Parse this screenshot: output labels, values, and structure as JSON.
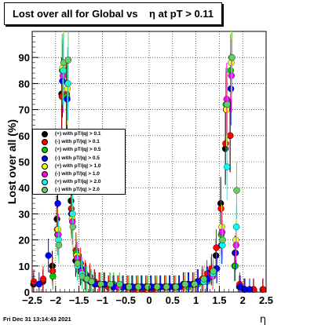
{
  "title": "Lost over all for Global vs    η at pT > 0.11",
  "footer": "Fri Dec 31 13:14:43 2021",
  "chart_data": {
    "type": "scatter",
    "title": "Lost over all for Global vs    η at pT > 0.11",
    "xlabel": "η",
    "ylabel": "Lost over all (%)",
    "xlim": [
      -2.5,
      2.5
    ],
    "ylim": [
      0,
      100
    ],
    "x_ticks": [
      "−2.5",
      "−2",
      "−1.5",
      "−1",
      "−0.5",
      "0",
      "0.5",
      "1",
      "1.5",
      "2",
      "2.5"
    ],
    "y_ticks": [
      "0",
      "10",
      "20",
      "30",
      "40",
      "50",
      "60",
      "70",
      "80",
      "90"
    ],
    "grid": true,
    "legend_position": "middle-left",
    "series": [
      {
        "name": "(+) with pT/|q| > 0.1",
        "color": "#000000",
        "x": [
          -2.45,
          -2.25,
          -2.05,
          -1.95,
          -1.85,
          -1.75,
          -1.65,
          -1.55,
          -1.45,
          -1.35,
          -1.25,
          -1.15,
          -1.05,
          -0.95,
          -0.85,
          -0.75,
          -0.65,
          -0.55,
          -0.45,
          -0.35,
          -0.25,
          -0.15,
          -0.05,
          0.05,
          0.15,
          0.25,
          0.35,
          0.45,
          0.55,
          0.65,
          0.75,
          0.85,
          0.95,
          1.05,
          1.15,
          1.25,
          1.35,
          1.45,
          1.55,
          1.65,
          1.75,
          1.85,
          1.95,
          2.05,
          2.25,
          2.45
        ],
        "y": [
          3,
          4,
          10,
          28,
          76,
          75,
          35,
          12,
          8,
          6,
          5,
          4,
          3,
          3,
          2,
          2,
          2,
          2,
          2,
          2,
          2,
          2,
          2,
          2,
          2,
          2,
          2,
          2,
          2,
          2,
          3,
          3,
          3,
          4,
          4,
          5,
          8,
          14,
          34,
          55,
          60,
          10,
          2,
          1,
          1,
          1
        ]
      },
      {
        "name": "(-) with pT/|q| > 0.1",
        "color": "#ff0000",
        "x": [
          -2.45,
          -2.25,
          -2.05,
          -1.95,
          -1.85,
          -1.75,
          -1.65,
          -1.55,
          -1.45,
          -1.35,
          -1.25,
          -1.15,
          -1.05,
          -0.95,
          -0.85,
          -0.75,
          -0.65,
          -0.55,
          -0.45,
          -0.35,
          -0.25,
          -0.15,
          -0.05,
          0.05,
          0.15,
          0.25,
          0.35,
          0.45,
          0.55,
          0.65,
          0.75,
          0.85,
          0.95,
          1.05,
          1.15,
          1.25,
          1.35,
          1.45,
          1.55,
          1.65,
          1.75,
          1.85,
          1.95,
          2.05,
          2.25,
          2.45
        ],
        "y": [
          4,
          5,
          8,
          24,
          75,
          76,
          32,
          16,
          11,
          7,
          6,
          4,
          3,
          3,
          2,
          2,
          2,
          2,
          2,
          1,
          1,
          1,
          1,
          1,
          1,
          2,
          2,
          2,
          2,
          2,
          2,
          3,
          3,
          4,
          5,
          7,
          9,
          17,
          32,
          57,
          60,
          15,
          3,
          1,
          1,
          1
        ]
      },
      {
        "name": "(+) with pT/|q| > 0.5",
        "color": "#00cc00",
        "x": [
          -2.05,
          -1.95,
          -1.85,
          -1.75,
          -1.65,
          -1.55,
          -1.45,
          -1.35,
          -1.25,
          -1.15,
          -0.95,
          -0.75,
          -0.55,
          -0.35,
          -0.15,
          0.05,
          0.25,
          0.45,
          0.65,
          0.85,
          1.05,
          1.25,
          1.45,
          1.55,
          1.65,
          1.75,
          1.85
        ],
        "y": [
          6,
          22,
          85,
          75,
          30,
          15,
          9,
          5,
          4,
          3,
          3,
          3,
          2,
          2,
          2,
          2,
          2,
          2,
          2,
          2,
          3,
          4,
          9,
          22,
          72,
          85,
          10
        ]
      },
      {
        "name": "(-) with pT/|q| > 0.5",
        "color": "#0000ff",
        "x": [
          -2.35,
          -2.15,
          -1.95,
          -1.85,
          -1.75,
          -1.65,
          -1.55,
          -1.45,
          -1.35,
          -1.25,
          -1.15,
          -0.95,
          -0.75,
          -0.55,
          -0.35,
          -0.15,
          0.05,
          0.25,
          0.45,
          0.65,
          0.85,
          1.05,
          1.25,
          1.45,
          1.55,
          1.65,
          1.75,
          1.85,
          1.95,
          2.05,
          2.15
        ],
        "y": [
          3,
          14,
          34,
          81,
          74,
          30,
          14,
          9,
          6,
          4,
          3,
          3,
          2,
          2,
          2,
          2,
          2,
          2,
          2,
          2,
          3,
          4,
          5,
          9,
          18,
          70,
          78,
          15,
          2,
          1,
          1
        ]
      },
      {
        "name": "(+) with pT/|q| > 1.0",
        "color": "#ffff00",
        "x": [
          -1.95,
          -1.85,
          -1.75,
          -1.65,
          -1.55,
          -1.45,
          -1.35,
          -1.25,
          -1.05,
          -0.85,
          -0.65,
          -0.45,
          -0.25,
          -0.05,
          0.15,
          0.35,
          0.55,
          0.75,
          0.95,
          1.15,
          1.35,
          1.55,
          1.65,
          1.75,
          1.85
        ],
        "y": [
          24,
          86,
          78,
          28,
          14,
          8,
          5,
          4,
          3,
          3,
          2,
          2,
          2,
          2,
          2,
          2,
          2,
          3,
          3,
          4,
          6,
          25,
          70,
          88,
          20
        ]
      },
      {
        "name": "(-) with pT/|q| > 1.0",
        "color": "#ff00ff",
        "x": [
          -1.95,
          -1.85,
          -1.75,
          -1.65,
          -1.55,
          -1.45,
          -1.35,
          -1.25,
          -1.05,
          -0.85,
          -0.65,
          -0.45,
          -0.25,
          -0.05,
          0.15,
          0.35,
          0.55,
          0.75,
          0.95,
          1.15,
          1.35,
          1.55,
          1.65,
          1.75,
          1.85
        ],
        "y": [
          22,
          83,
          80,
          27,
          13,
          8,
          5,
          4,
          3,
          3,
          2,
          2,
          2,
          2,
          2,
          2,
          2,
          3,
          3,
          4,
          6,
          23,
          74,
          83,
          18
        ]
      },
      {
        "name": "(+) with pT/|q| > 2.0",
        "color": "#00ffff",
        "x": [
          -1.95,
          -1.85,
          -1.75,
          -1.65,
          -1.55,
          -1.45,
          -1.35,
          -1.25,
          -1.05,
          -0.85,
          -0.65,
          -0.45,
          -0.25,
          -0.05,
          0.15,
          0.35,
          0.55,
          0.75,
          0.95,
          1.15,
          1.35,
          1.55,
          1.65,
          1.75,
          1.85
        ],
        "y": [
          20,
          85,
          80,
          30,
          10,
          7,
          5,
          4,
          3,
          3,
          3,
          2,
          2,
          2,
          2,
          2,
          2,
          3,
          3,
          4,
          7,
          18,
          48,
          90,
          25
        ]
      },
      {
        "name": "(-) with pT/|q| > 2.0",
        "color": "#66cc66",
        "x": [
          -1.95,
          -1.85,
          -1.75,
          -1.65,
          -1.55,
          -1.45,
          -1.35,
          -1.25,
          -1.05,
          -0.85,
          -0.65,
          -0.45,
          -0.25,
          -0.05,
          0.15,
          0.35,
          0.55,
          0.75,
          0.95,
          1.15,
          1.35,
          1.55,
          1.65,
          1.75,
          1.85
        ],
        "y": [
          18,
          88,
          89,
          25,
          11,
          6,
          5,
          4,
          3,
          3,
          3,
          2,
          2,
          2,
          2,
          2,
          2,
          3,
          3,
          5,
          8,
          20,
          72,
          90,
          39
        ]
      }
    ]
  }
}
